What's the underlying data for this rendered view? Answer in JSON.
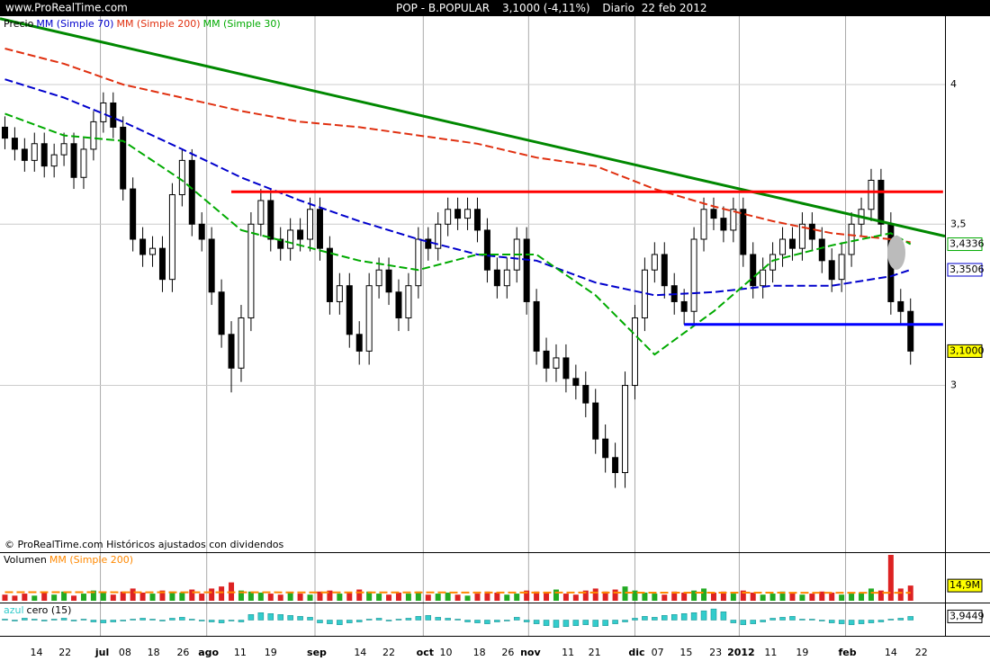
{
  "header": {
    "site": "www.ProRealTime.com",
    "instrument": "POP - B.POPULAR",
    "quote": "3,1000 (-4,11%)",
    "period": "Diario",
    "date": "22 feb 2012"
  },
  "chart_data": [
    {
      "type": "candlestick",
      "legend": "Precio",
      "note": "© ProRealTime.com Históricos ajustados con dividendos",
      "log_scale": true,
      "grid": true,
      "color_up": "#ffffff",
      "color_down": "#000000",
      "xlim": [
        -0.5,
        95.5
      ],
      "ylim": [
        2.56,
        4.27
      ],
      "yticks": [
        3,
        {
          "value": 3.5,
          "label": "3,5"
        },
        4
      ],
      "xticks": [
        {
          "value": 3.2,
          "label": "14"
        },
        {
          "value": 6.1,
          "label": "22"
        },
        {
          "value": 12.2,
          "label": "08"
        },
        {
          "value": 15.1,
          "label": "18"
        },
        {
          "value": 18.1,
          "label": "26"
        },
        {
          "value": 23.9,
          "label": "11"
        },
        {
          "value": 27.0,
          "label": "19"
        },
        {
          "value": 36.1,
          "label": "14"
        },
        {
          "value": 39.0,
          "label": "22"
        },
        {
          "value": 44.8,
          "label": "10"
        },
        {
          "value": 48.2,
          "label": "18"
        },
        {
          "value": 51.1,
          "label": "26"
        },
        {
          "value": 57.2,
          "label": "11"
        },
        {
          "value": 59.9,
          "label": "21"
        },
        {
          "value": 66.3,
          "label": "07"
        },
        {
          "value": 69.2,
          "label": "15"
        },
        {
          "value": 72.2,
          "label": "23"
        },
        {
          "value": 77.8,
          "label": "11"
        },
        {
          "value": 81.0,
          "label": "19"
        },
        {
          "value": 90.0,
          "label": "14"
        },
        {
          "value": 93.1,
          "label": "22"
        }
      ],
      "month_ticks": [
        {
          "value": 9.7,
          "label": "jul"
        },
        {
          "value": 20.5,
          "label": "ago"
        },
        {
          "value": 31.5,
          "label": "sep"
        },
        {
          "value": 42.5,
          "label": "oct"
        },
        {
          "value": 53.2,
          "label": "nov"
        },
        {
          "value": 64.0,
          "label": "dic"
        },
        {
          "value": 74.6,
          "label": "2012"
        },
        {
          "value": 85.4,
          "label": "feb"
        }
      ],
      "open": [
        3.84,
        3.8,
        3.76,
        3.72,
        3.78,
        3.7,
        3.74,
        3.78,
        3.66,
        3.76,
        3.86,
        3.93,
        3.84,
        3.62,
        3.45,
        3.4,
        3.42,
        3.32,
        3.6,
        3.72,
        3.5,
        3.45,
        3.28,
        3.15,
        3.05,
        3.2,
        3.5,
        3.58,
        3.45,
        3.42,
        3.48,
        3.45,
        3.55,
        3.42,
        3.25,
        3.3,
        3.15,
        3.1,
        3.3,
        3.35,
        3.28,
        3.2,
        3.3,
        3.45,
        3.42,
        3.5,
        3.55,
        3.52,
        3.55,
        3.48,
        3.35,
        3.3,
        3.35,
        3.45,
        3.25,
        3.1,
        3.05,
        3.08,
        3.02,
        3.0,
        2.95,
        2.85,
        2.8,
        2.76,
        3.0,
        3.2,
        3.35,
        3.4,
        3.3,
        3.25,
        3.22,
        3.45,
        3.55,
        3.52,
        3.48,
        3.55,
        3.4,
        3.3,
        3.35,
        3.4,
        3.45,
        3.42,
        3.5,
        3.45,
        3.38,
        3.32,
        3.4,
        3.5,
        3.55,
        3.65,
        3.5,
        3.25,
        3.22
      ],
      "high": [
        3.88,
        3.84,
        3.8,
        3.82,
        3.82,
        3.78,
        3.82,
        3.82,
        3.8,
        3.9,
        3.97,
        3.97,
        3.88,
        3.66,
        3.49,
        3.46,
        3.46,
        3.64,
        3.76,
        3.76,
        3.54,
        3.49,
        3.32,
        3.19,
        3.24,
        3.54,
        3.62,
        3.62,
        3.49,
        3.52,
        3.52,
        3.59,
        3.59,
        3.46,
        3.34,
        3.34,
        3.19,
        3.34,
        3.39,
        3.39,
        3.32,
        3.34,
        3.49,
        3.49,
        3.54,
        3.59,
        3.59,
        3.59,
        3.59,
        3.52,
        3.39,
        3.39,
        3.49,
        3.49,
        3.29,
        3.14,
        3.12,
        3.12,
        3.06,
        3.04,
        2.99,
        2.89,
        2.84,
        3.04,
        3.24,
        3.39,
        3.44,
        3.44,
        3.34,
        3.29,
        3.49,
        3.59,
        3.59,
        3.56,
        3.59,
        3.59,
        3.44,
        3.39,
        3.44,
        3.49,
        3.49,
        3.54,
        3.54,
        3.49,
        3.42,
        3.44,
        3.54,
        3.59,
        3.69,
        3.69,
        3.54,
        3.29,
        3.26
      ],
      "low": [
        3.76,
        3.72,
        3.68,
        3.68,
        3.66,
        3.66,
        3.7,
        3.62,
        3.62,
        3.72,
        3.82,
        3.8,
        3.58,
        3.41,
        3.36,
        3.36,
        3.28,
        3.28,
        3.56,
        3.46,
        3.41,
        3.24,
        3.11,
        2.98,
        3.01,
        3.16,
        3.46,
        3.41,
        3.38,
        3.38,
        3.41,
        3.41,
        3.38,
        3.21,
        3.21,
        3.11,
        3.06,
        3.06,
        3.26,
        3.24,
        3.16,
        3.16,
        3.26,
        3.38,
        3.38,
        3.46,
        3.48,
        3.48,
        3.44,
        3.31,
        3.26,
        3.26,
        3.31,
        3.21,
        3.06,
        3.01,
        3.01,
        2.98,
        2.96,
        2.91,
        2.81,
        2.76,
        2.72,
        2.72,
        2.96,
        3.16,
        3.31,
        3.26,
        3.21,
        3.18,
        3.18,
        3.41,
        3.48,
        3.44,
        3.44,
        3.36,
        3.26,
        3.26,
        3.31,
        3.36,
        3.38,
        3.38,
        3.41,
        3.34,
        3.28,
        3.28,
        3.36,
        3.46,
        3.51,
        3.46,
        3.21,
        3.18,
        3.06
      ],
      "close": [
        3.8,
        3.76,
        3.72,
        3.78,
        3.7,
        3.74,
        3.78,
        3.66,
        3.76,
        3.86,
        3.93,
        3.84,
        3.62,
        3.45,
        3.4,
        3.42,
        3.32,
        3.6,
        3.72,
        3.5,
        3.45,
        3.28,
        3.15,
        3.05,
        3.2,
        3.5,
        3.58,
        3.45,
        3.42,
        3.48,
        3.45,
        3.55,
        3.42,
        3.25,
        3.3,
        3.15,
        3.1,
        3.3,
        3.35,
        3.28,
        3.2,
        3.3,
        3.45,
        3.42,
        3.5,
        3.55,
        3.52,
        3.55,
        3.48,
        3.35,
        3.3,
        3.35,
        3.45,
        3.25,
        3.1,
        3.05,
        3.08,
        3.02,
        3.0,
        2.95,
        2.85,
        2.8,
        2.76,
        3.0,
        3.2,
        3.35,
        3.4,
        3.3,
        3.25,
        3.22,
        3.45,
        3.55,
        3.52,
        3.48,
        3.55,
        3.4,
        3.3,
        3.35,
        3.4,
        3.45,
        3.42,
        3.5,
        3.45,
        3.38,
        3.32,
        3.4,
        3.5,
        3.55,
        3.65,
        3.5,
        3.25,
        3.22,
        3.1
      ],
      "last_label": "3,1000",
      "last_label_color": "#ffff00",
      "lines": [
        {
          "name": "MM (Simple 70)",
          "color": "#0000cc",
          "x": [
            0,
            6,
            12,
            18,
            24,
            30,
            36,
            42,
            48,
            54,
            60,
            66,
            72,
            78,
            84,
            90,
            92
          ],
          "values": [
            4.02,
            3.95,
            3.86,
            3.76,
            3.66,
            3.58,
            3.51,
            3.45,
            3.4,
            3.38,
            3.31,
            3.27,
            3.28,
            3.3,
            3.3,
            3.33,
            3.3506
          ],
          "last_label": "3,3506"
        },
        {
          "name": "MM (Simple 200)",
          "color": "#e03010",
          "x": [
            0,
            6,
            12,
            18,
            24,
            30,
            36,
            42,
            48,
            54,
            60,
            66,
            72,
            78,
            84,
            90,
            92
          ],
          "values": [
            4.14,
            4.08,
            4.0,
            3.95,
            3.9,
            3.86,
            3.84,
            3.81,
            3.78,
            3.73,
            3.7,
            3.62,
            3.56,
            3.51,
            3.47,
            3.45,
            3.44
          ]
        },
        {
          "name": "MM (Simple 30)",
          "color": "#00aa00",
          "x": [
            0,
            6,
            12,
            18,
            24,
            30,
            36,
            42,
            48,
            54,
            60,
            66,
            72,
            78,
            84,
            90,
            92
          ],
          "values": [
            3.89,
            3.81,
            3.79,
            3.65,
            3.48,
            3.43,
            3.38,
            3.35,
            3.4,
            3.4,
            3.27,
            3.09,
            3.22,
            3.38,
            3.43,
            3.47,
            3.4336
          ],
          "last_label": "3,4336"
        }
      ],
      "trendlines": [
        {
          "color": "#008800",
          "x": [
            -0.5,
            95.5
          ],
          "values": [
            4.26,
            3.46
          ]
        },
        {
          "color": "#ff0000",
          "x": [
            23.0,
            95.3
          ],
          "values": [
            3.61,
            3.61
          ]
        },
        {
          "color": "#0000ff",
          "x": [
            69.0,
            95.3
          ],
          "values": [
            3.18,
            3.18
          ]
        }
      ]
    },
    {
      "type": "bar",
      "legend": "Volumen",
      "ylim": [
        0,
        45
      ],
      "color_up": "#22aa22",
      "color_down": "#dd2222",
      "values": [
        6,
        5,
        7,
        5,
        8,
        6,
        9,
        5,
        7,
        10,
        8,
        6,
        9,
        12,
        8,
        7,
        10,
        9,
        8,
        11,
        7,
        12,
        14,
        18,
        10,
        9,
        8,
        7,
        6,
        8,
        7,
        6,
        9,
        10,
        7,
        8,
        11,
        9,
        7,
        6,
        8,
        7,
        9,
        6,
        7,
        8,
        6,
        5,
        7,
        9,
        8,
        6,
        7,
        10,
        9,
        8,
        11,
        7,
        6,
        10,
        12,
        9,
        11,
        14,
        10,
        8,
        7,
        6,
        9,
        8,
        10,
        12,
        8,
        9,
        7,
        10,
        8,
        6,
        7,
        9,
        8,
        6,
        7,
        9,
        8,
        6,
        7,
        8,
        12,
        10,
        45,
        12,
        14.9
      ],
      "last_label": "14,9M",
      "last_label_color": "#ffff00",
      "ma": {
        "name": "MM (Simple 200)",
        "color": "#ff8800",
        "x": [
          0,
          92
        ],
        "values": [
          8.4,
          7.8
        ]
      }
    },
    {
      "type": "bar",
      "legend": "azul",
      "subtitle": "cero (15)",
      "color": "#33cccc",
      "ylim": [
        -16,
        16
      ],
      "values": [
        1,
        -1,
        2,
        1,
        -1,
        1,
        2,
        -1,
        1,
        -2,
        -3,
        -2,
        -1,
        1,
        2,
        1,
        -1,
        2,
        3,
        1,
        -1,
        -2,
        -3,
        -1,
        -2,
        6,
        8,
        7,
        6,
        5,
        4,
        3,
        -3,
        -4,
        -5,
        -3,
        -2,
        1,
        2,
        -1,
        1,
        2,
        4,
        5,
        3,
        2,
        1,
        -2,
        -3,
        -4,
        -2,
        -1,
        3,
        -2,
        -4,
        -6,
        -8,
        -7,
        -6,
        -5,
        -7,
        -6,
        -4,
        -2,
        2,
        4,
        3,
        5,
        6,
        7,
        8,
        10,
        12,
        9,
        -3,
        -5,
        -4,
        -2,
        2,
        3,
        4,
        1,
        1,
        -1,
        -3,
        -4,
        -5,
        -4,
        -3,
        -2,
        1,
        2,
        3.9449
      ],
      "last_label": "3,9449",
      "last_label_color": "#ffffff"
    }
  ]
}
